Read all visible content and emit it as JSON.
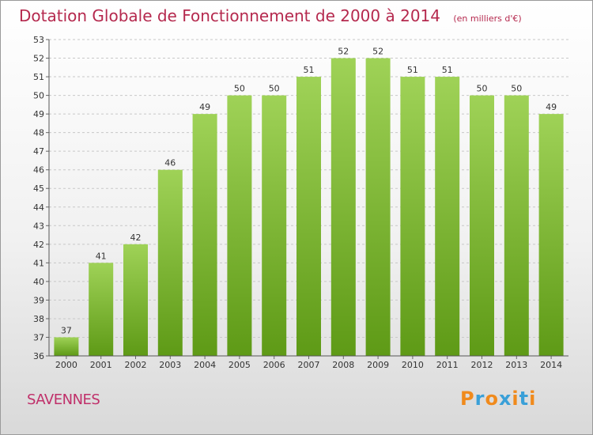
{
  "header": {
    "title": "Dotation Globale de Fonctionnement de 2000 à 2014",
    "subtitle": "(en milliers d'€)"
  },
  "footer": {
    "city": "SAVENNES",
    "brand": "Proxiti"
  },
  "colors": {
    "title": "#b5294e",
    "bar_light": "#9fd257",
    "bar_dark": "#5e9a16",
    "brand_letters": [
      "#f08a1c",
      "#3aa0d8",
      "#f08a1c",
      "#3aa0d8",
      "#f08a1c",
      "#3aa0d8",
      "#f08a1c"
    ]
  },
  "chart_data": {
    "type": "bar",
    "title": "Dotation Globale de Fonctionnement de 2000 à 2014",
    "subtitle": "(en milliers d'€)",
    "categories": [
      "2000",
      "2001",
      "2002",
      "2003",
      "2004",
      "2005",
      "2006",
      "2007",
      "2008",
      "2009",
      "2010",
      "2011",
      "2012",
      "2013",
      "2014"
    ],
    "values": [
      37,
      41,
      42,
      46,
      49,
      50,
      50,
      51,
      52,
      52,
      51,
      51,
      50,
      50,
      49
    ],
    "ylim": [
      36,
      53
    ],
    "yticks": [
      36,
      37,
      38,
      39,
      40,
      41,
      42,
      43,
      44,
      45,
      46,
      47,
      48,
      49,
      50,
      51,
      52,
      53
    ],
    "grid": true,
    "legend": "none",
    "xlabel": "",
    "ylabel": ""
  }
}
